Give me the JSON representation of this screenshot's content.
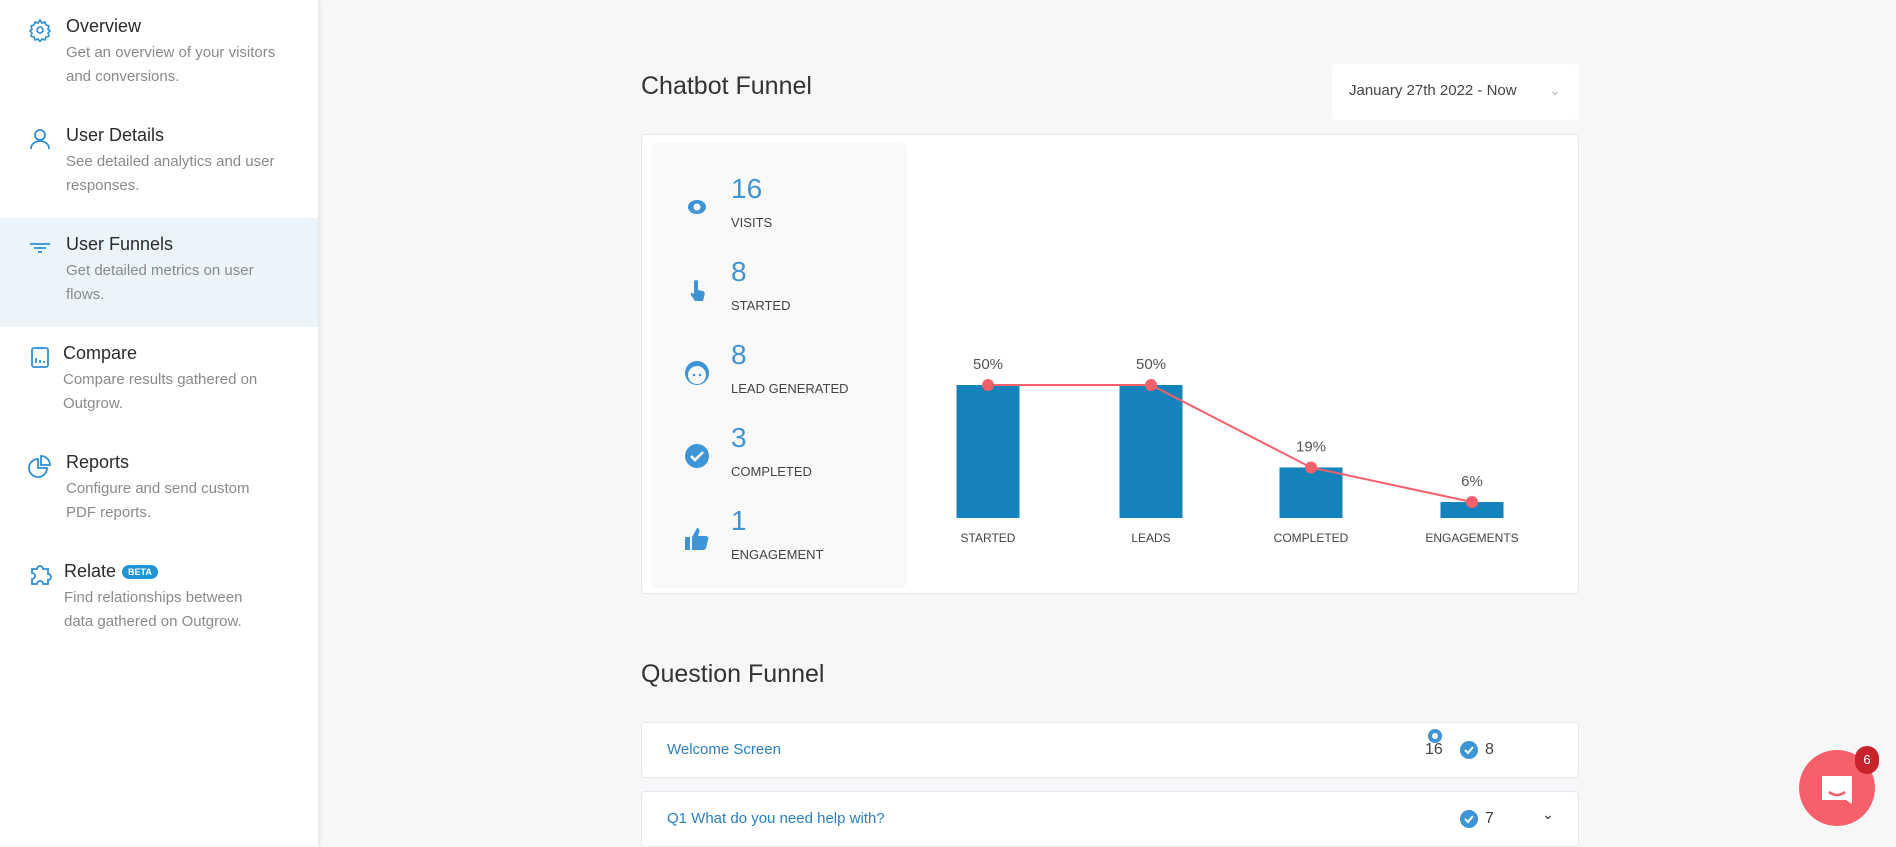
{
  "sidebar": {
    "items": [
      {
        "title": "Overview",
        "desc": "Get an overview of your visitors and conversions.",
        "icon": "gear-icon"
      },
      {
        "title": "User Details",
        "desc": "See detailed analytics and user responses.",
        "icon": "user-icon"
      },
      {
        "title": "User Funnels",
        "desc": "Get detailed metrics on user flows.",
        "icon": "filter-icon",
        "active": true
      },
      {
        "title": "Compare",
        "desc": "Compare results gathered on Outgrow.",
        "icon": "clipboard-chart-icon"
      },
      {
        "title": "Reports",
        "desc": "Configure and send custom PDF reports.",
        "icon": "pie-chart-icon"
      },
      {
        "title": "Relate",
        "badge": "BETA",
        "desc": "Find relationships between data gathered on Outgrow.",
        "icon": "puzzle-icon"
      }
    ]
  },
  "chatbot_funnel": {
    "title": "Chatbot Funnel",
    "date_range": "January 27th 2022 - Now",
    "stats": [
      {
        "value": "16",
        "label": "VISITS",
        "icon": "eye-icon"
      },
      {
        "value": "8",
        "label": "STARTED",
        "icon": "pointer-hand-icon"
      },
      {
        "value": "8",
        "label": "LEAD GENERATED",
        "icon": "face-icon"
      },
      {
        "value": "3",
        "label": "COMPLETED",
        "icon": "check-circle-icon"
      },
      {
        "value": "1",
        "label": "ENGAGEMENT",
        "icon": "thumbs-up-icon"
      }
    ]
  },
  "chart_data": {
    "type": "bar",
    "categories": [
      "STARTED",
      "LEADS",
      "COMPLETED",
      "ENGAGEMENTS"
    ],
    "values": [
      50,
      50,
      19,
      6
    ],
    "data_labels": [
      "50%",
      "50%",
      "19%",
      "6%"
    ],
    "line_overlay": true,
    "colors": {
      "bar": "#1482bb",
      "line": "#f5606a"
    }
  },
  "question_funnel": {
    "title": "Question Funnel",
    "rows": [
      {
        "label": "Welcome Screen",
        "views": "16",
        "completed": "8"
      },
      {
        "label": "Q1  What do you need help with?",
        "completed": "7"
      }
    ]
  },
  "chat_widget": {
    "badge": "6"
  }
}
